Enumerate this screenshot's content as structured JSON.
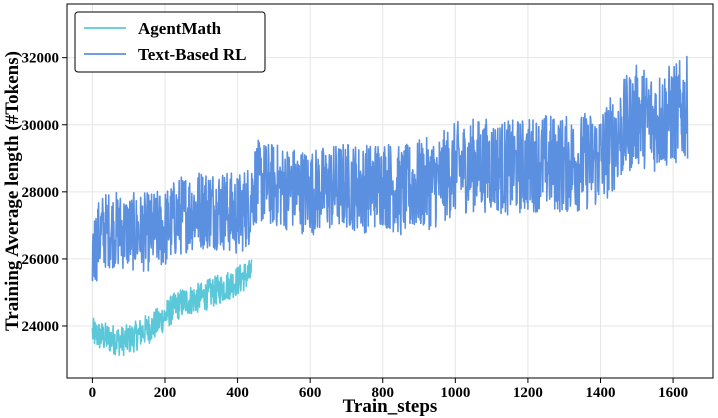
{
  "chart_data": {
    "type": "line",
    "xlabel": "Train_steps",
    "ylabel": "Training Average length (#Tokens)",
    "xlim": [
      -70,
      1710
    ],
    "ylim": [
      22450,
      33600
    ],
    "xticks": [
      0,
      200,
      400,
      600,
      800,
      1000,
      1200,
      1400,
      1600
    ],
    "yticks": [
      24000,
      26000,
      28000,
      30000,
      32000
    ],
    "grid": true,
    "legend_position": "top-left",
    "series": [
      {
        "name": "AgentMath",
        "color": "#5bc8d9",
        "x": [
          0,
          20,
          40,
          60,
          80,
          100,
          120,
          140,
          160,
          180,
          200,
          220,
          240,
          260,
          280,
          300,
          320,
          340,
          360,
          380,
          400,
          420,
          440
        ],
        "values": [
          23800,
          23700,
          23650,
          23600,
          23550,
          23600,
          23700,
          23850,
          23950,
          24100,
          24300,
          24500,
          24650,
          24750,
          24800,
          24850,
          24950,
          25050,
          25150,
          25250,
          25350,
          25500,
          25550
        ]
      },
      {
        "name": "Text-Based RL",
        "color": "#5b8fe0",
        "x": [
          0,
          25,
          50,
          100,
          150,
          200,
          230,
          260,
          300,
          350,
          400,
          430,
          450,
          500,
          550,
          600,
          650,
          700,
          750,
          800,
          850,
          900,
          950,
          1000,
          1050,
          1100,
          1150,
          1200,
          1250,
          1300,
          1350,
          1400,
          1450,
          1500,
          1550,
          1600,
          1640
        ],
        "values": [
          26200,
          26800,
          26900,
          26800,
          26800,
          26900,
          27200,
          27400,
          27500,
          27500,
          27300,
          27600,
          28300,
          28200,
          28100,
          28000,
          28100,
          28200,
          28100,
          28300,
          28000,
          28200,
          28300,
          28700,
          28800,
          28800,
          28700,
          28800,
          28900,
          28800,
          28900,
          29000,
          29700,
          30300,
          30100,
          30300,
          30500
        ]
      }
    ]
  }
}
